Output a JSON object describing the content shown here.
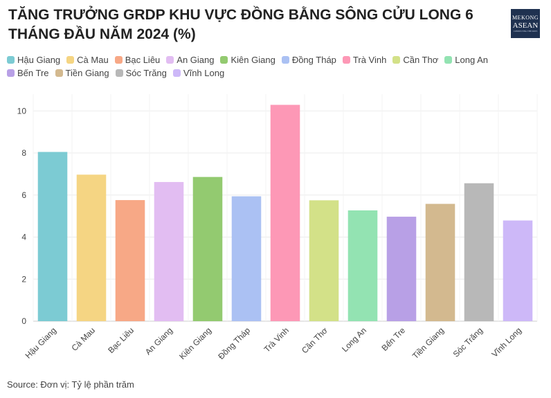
{
  "title": "TĂNG TRƯỞNG GRDP KHU VỰC ĐỒNG BẰNG SÔNG CỬU LONG 6 THÁNG ĐẦU NĂM 2024 (%)",
  "logo": {
    "line1": "MEKONG",
    "line2": "ASEAN",
    "line3": "CONNECTING THE DOTS"
  },
  "source": "Source: Đơn vị: Tỷ lệ phần trăm",
  "chart_data": {
    "type": "bar",
    "categories": [
      "Hậu Giang",
      "Cà Mau",
      "Bạc Liêu",
      "An Giang",
      "Kiên Giang",
      "Đồng Tháp",
      "Trà Vinh",
      "Cần Thơ",
      "Long An",
      "Bến Tre",
      "Tiền Giang",
      "Sóc Trăng",
      "Vĩnh Long"
    ],
    "values": [
      8.05,
      6.97,
      5.76,
      6.62,
      6.86,
      5.94,
      10.29,
      5.75,
      5.27,
      4.97,
      5.58,
      6.56,
      4.79
    ],
    "colors": [
      "#7ccbd3",
      "#f5d583",
      "#f7a886",
      "#e2bdf2",
      "#93ca70",
      "#abc1f3",
      "#fd98b6",
      "#d3e188",
      "#93e3b2",
      "#b8a0e6",
      "#d3b98f",
      "#b8b8b8",
      "#cdb8f8"
    ],
    "title": "TĂNG TRƯỞNG GRDP KHU VỰC ĐỒNG BẰNG SÔNG CỬU LONG 6 THÁNG ĐẦU NĂM 2024 (%)",
    "xlabel": "",
    "ylabel": "",
    "ylim": [
      0,
      10.8
    ],
    "yticks": [
      0,
      2,
      4,
      6,
      8,
      10
    ],
    "grid": true,
    "legend": "top"
  }
}
